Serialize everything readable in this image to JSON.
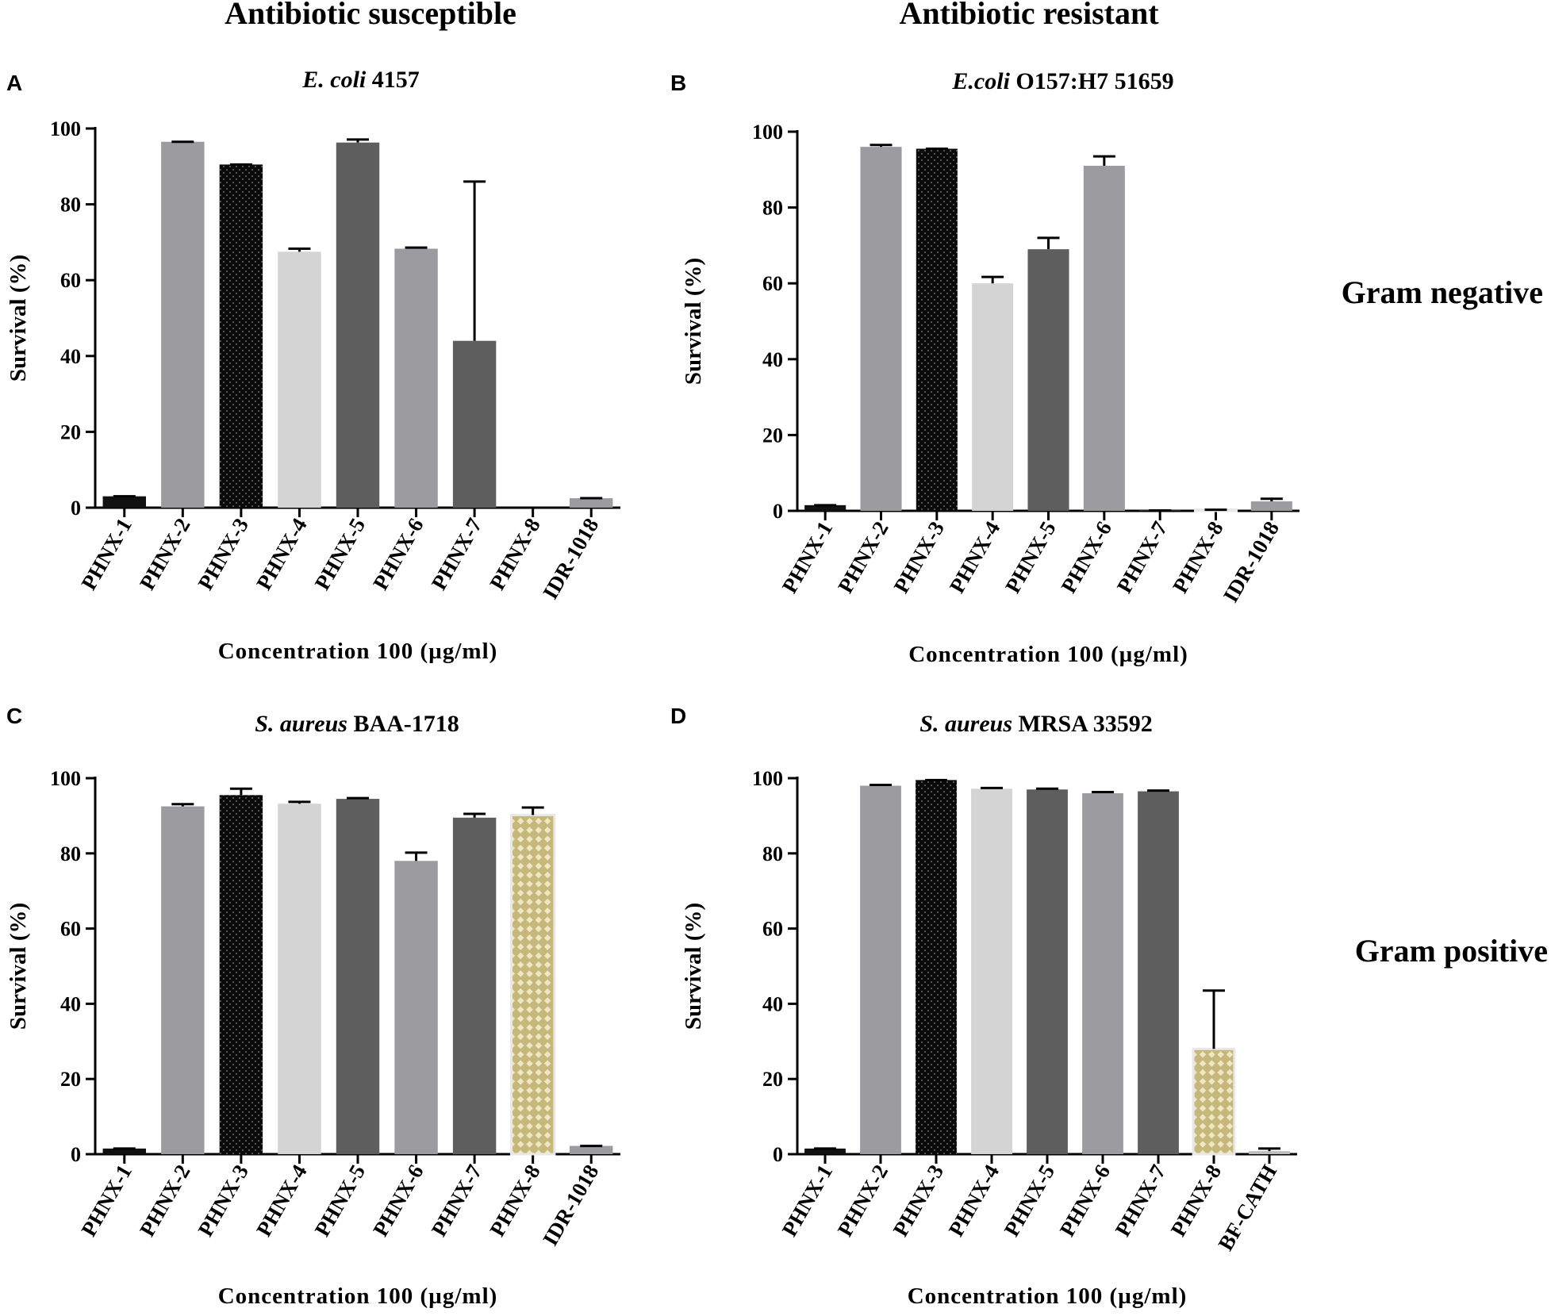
{
  "column_titles": [
    "Antibiotic susceptible",
    "Antibiotic resistant"
  ],
  "row_labels": [
    "Gram negative",
    "Gram positive"
  ],
  "fill_colors": {
    "PHNX-1": "#111111",
    "PHNX-2": "#9c9ca0",
    "PHNX-3": "#0a0a0a",
    "PHNX-4": "#d4d4d4",
    "PHNX-5": "#5e5e5e",
    "PHNX-6": "#9c9ca0",
    "PHNX-7": "#5e5e5e",
    "PHNX-8": "#c5b87a",
    "IDR-1018": "#9c9ca0",
    "BF-CATH": "#bdbdbd"
  },
  "chart_data": [
    {
      "type": "bar",
      "panel": "A",
      "title_italic": "E. coli",
      "title_rest": " 4157",
      "xlabel": "Concentration 100 (µg/ml)",
      "ylabel": "Survival (%)",
      "ylim": [
        0,
        100
      ],
      "yticks": [
        0,
        20,
        40,
        60,
        80,
        100
      ],
      "categories": [
        "PHNX-1",
        "PHNX-2",
        "PHNX-3",
        "PHNX-4",
        "PHNX-5",
        "PHNX-6",
        "PHNX-7",
        "PHNX-8",
        "IDR-1018"
      ],
      "values": [
        3,
        96.5,
        90.5,
        67.5,
        96.3,
        68.3,
        44,
        0,
        2.5
      ],
      "errors": [
        0,
        0,
        0,
        0.8,
        0.8,
        0.3,
        42,
        0,
        0
      ]
    },
    {
      "type": "bar",
      "panel": "B",
      "title_italic": "E.coli",
      "title_rest": " O157:H7 51659",
      "xlabel": "Concentration 100 (µg/ml)",
      "ylabel": "Survival (%)",
      "ylim": [
        0,
        100
      ],
      "yticks": [
        0,
        20,
        40,
        60,
        80,
        100
      ],
      "categories": [
        "PHNX-1",
        "PHNX-2",
        "PHNX-3",
        "PHNX-4",
        "PHNX-5",
        "PHNX-6",
        "PHNX-7",
        "PHNX-8",
        "IDR-1018"
      ],
      "values": [
        1.5,
        96,
        95.5,
        60,
        69,
        91,
        0.1,
        0.3,
        2.5
      ],
      "errors": [
        0,
        0.5,
        0,
        1.7,
        3,
        2.5,
        0,
        0,
        0.7
      ]
    },
    {
      "type": "bar",
      "panel": "C",
      "title_italic": "S. aureus",
      "title_rest": " BAA-1718",
      "xlabel": "Concentration 100 (µg/ml)",
      "ylabel": "Survival (%)",
      "ylim": [
        0,
        100
      ],
      "yticks": [
        0,
        20,
        40,
        60,
        80,
        100
      ],
      "categories": [
        "PHNX-1",
        "PHNX-2",
        "PHNX-3",
        "PHNX-4",
        "PHNX-5",
        "PHNX-6",
        "PHNX-7",
        "PHNX-8",
        "IDR-1018"
      ],
      "values": [
        1.5,
        92.5,
        95.5,
        93.2,
        94.5,
        78,
        89.5,
        90.2,
        2.2
      ],
      "errors": [
        0,
        0.6,
        1.7,
        0.5,
        0.2,
        2.2,
        1,
        2,
        0
      ]
    },
    {
      "type": "bar",
      "panel": "D",
      "title_italic": "S. aureus",
      "title_rest": " MRSA 33592",
      "xlabel": "Concentration 100 (µg/ml)",
      "ylabel": "Survival (%)",
      "ylim": [
        0,
        100
      ],
      "yticks": [
        0,
        20,
        40,
        60,
        80,
        100
      ],
      "categories": [
        "PHNX-1",
        "PHNX-2",
        "PHNX-3",
        "PHNX-4",
        "PHNX-5",
        "PHNX-6",
        "PHNX-7",
        "PHNX-8",
        "BF-CATH"
      ],
      "values": [
        1.5,
        98,
        99.5,
        97.2,
        97,
        96,
        96.5,
        28,
        0.8
      ],
      "errors": [
        0,
        0.2,
        0,
        0.2,
        0.2,
        0.3,
        0.2,
        15.5,
        0.7
      ]
    }
  ]
}
